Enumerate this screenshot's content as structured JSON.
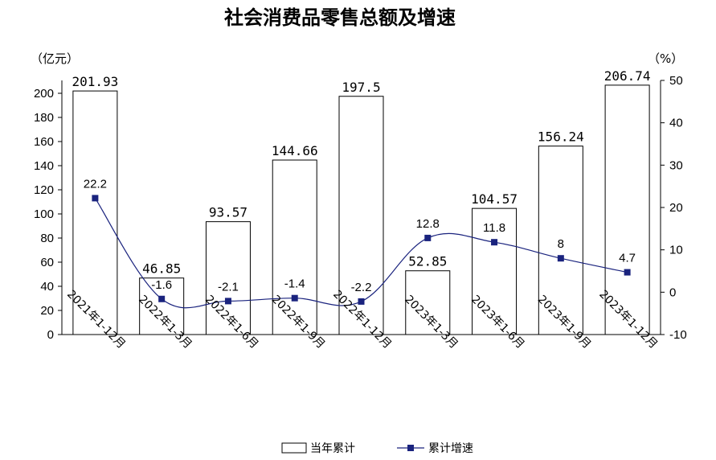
{
  "chart_data": {
    "type": "bar+line",
    "title": "社会消费品零售总额及增速",
    "left_unit": "（亿元）",
    "right_unit": "（%）",
    "categories": [
      "2021年1-12月",
      "2022年1-3月",
      "2022年1-6月",
      "2022年1-9月",
      "2022年1-12月",
      "2023年1-3月",
      "2023年1-6月",
      "2023年1-9月",
      "2023年1-12月"
    ],
    "series": [
      {
        "name": "当年累计",
        "type": "bar",
        "axis": "left",
        "values": [
          201.93,
          46.85,
          93.57,
          144.66,
          197.5,
          52.85,
          104.57,
          156.24,
          206.74
        ],
        "labels": [
          "201.93",
          "46.85",
          "93.57",
          "144.66",
          "197.5",
          "52.85",
          "104.57",
          "156.24",
          "206.74"
        ],
        "fill": "#ffffff",
        "stroke": "#000000"
      },
      {
        "name": "累计增速",
        "type": "line",
        "axis": "right",
        "values": [
          22.2,
          -1.6,
          -2.1,
          -1.4,
          -2.2,
          12.8,
          11.8,
          8,
          4.7
        ],
        "labels": [
          "22.2",
          "-1.6",
          "-2.1",
          "-1.4",
          "-2.2",
          "12.8",
          "11.8",
          "8",
          "4.7"
        ],
        "color": "#1a237e"
      }
    ],
    "left_axis": {
      "min": 0,
      "max": 200,
      "ticks": [
        "0",
        "20",
        "40",
        "60",
        "80",
        "100",
        "120",
        "140",
        "160",
        "180",
        "200"
      ]
    },
    "right_axis": {
      "min": -10,
      "max": 50,
      "ticks": [
        "-10",
        "0",
        "10",
        "20",
        "30",
        "40",
        "50"
      ]
    },
    "grid": false,
    "legend_position": "bottom"
  }
}
